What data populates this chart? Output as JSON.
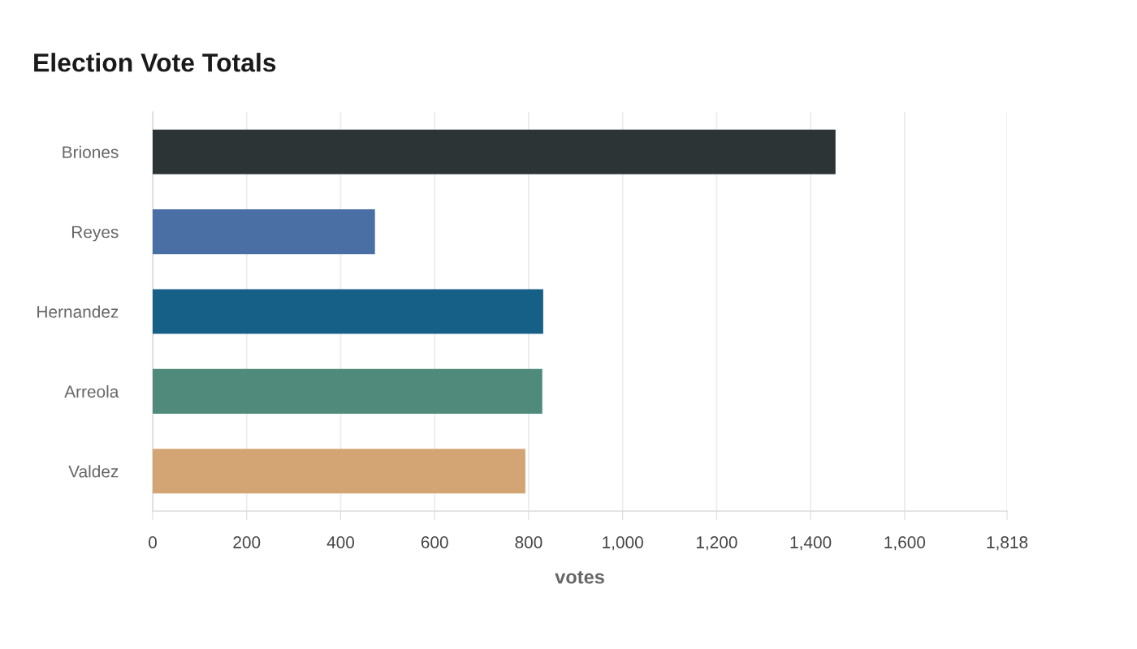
{
  "chart_data": {
    "type": "bar",
    "orientation": "horizontal",
    "title": "Election Vote Totals",
    "xlabel": "votes",
    "categories": [
      "Briones",
      "Reyes",
      "Hernandez",
      "Arreola",
      "Valdez"
    ],
    "values": [
      1453,
      473,
      831,
      829,
      793
    ],
    "colors": [
      "#2d3436",
      "#4a6fa5",
      "#166088",
      "#4f8a7b",
      "#d4a574"
    ],
    "xlim": [
      0,
      1818
    ],
    "xticks": [
      0,
      200,
      400,
      600,
      800,
      {
        "value": 1000,
        "label": "1,000"
      },
      {
        "value": 1200,
        "label": "1,200"
      },
      {
        "value": 1400,
        "label": "1,400"
      },
      {
        "value": 1600,
        "label": "1,600"
      },
      {
        "value": 1818,
        "label": "1,818"
      }
    ],
    "grid": "x"
  }
}
